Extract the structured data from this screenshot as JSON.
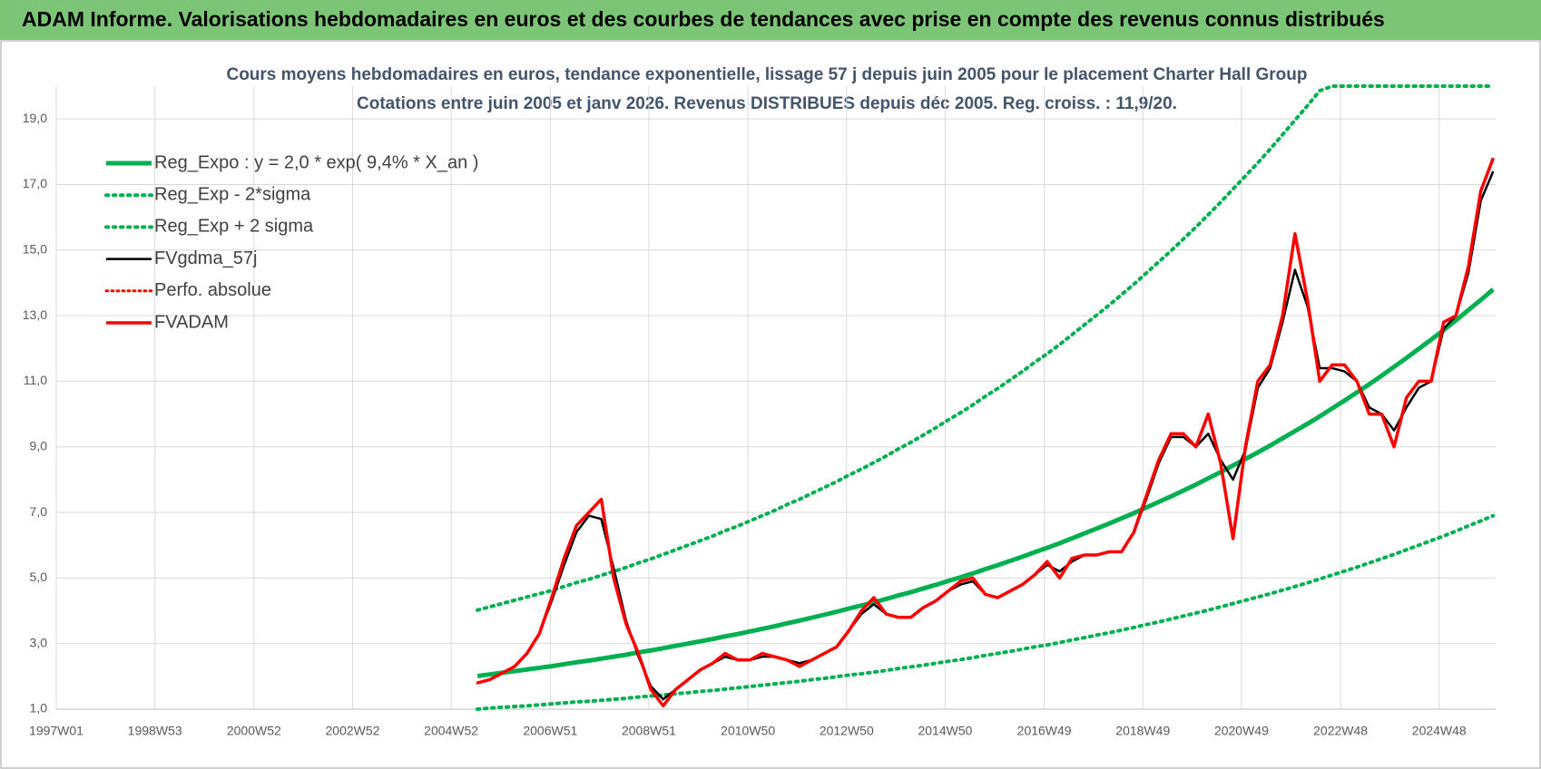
{
  "chart_data": {
    "type": "line",
    "title": "ADAM Informe. Valorisations hebdomadaires en euros et des courbes de tendances avec prise en compte des revenus connus distribués",
    "subtitle": [
      "Cours moyens hebdomadaires en euros, tendance exponentielle, lissage 57 j depuis juin 2005 pour le placement Charter Hall Group",
      "Cotations entre juin 2005 et janv 2026. Revenus DISTRIBUES depuis déc 2005. Reg. croiss. : 11,9/20."
    ],
    "legend": "upper left",
    "grid": true,
    "xlim": [
      1997,
      2026.05
    ],
    "xticks": [
      {
        "value": 1997.0,
        "label": "1997W01"
      },
      {
        "value": 1998.99,
        "label": "1998W53"
      },
      {
        "value": 2000.99,
        "label": "2000W52"
      },
      {
        "value": 2002.98,
        "label": "2002W52"
      },
      {
        "value": 2004.97,
        "label": "2004W52"
      },
      {
        "value": 2006.97,
        "label": "2006W51"
      },
      {
        "value": 2008.96,
        "label": "2008W51"
      },
      {
        "value": 2010.96,
        "label": "2010W50"
      },
      {
        "value": 2012.95,
        "label": "2012W50"
      },
      {
        "value": 2014.94,
        "label": "2014W50"
      },
      {
        "value": 2016.94,
        "label": "2016W49"
      },
      {
        "value": 2018.93,
        "label": "2018W49"
      },
      {
        "value": 2020.92,
        "label": "2020W49"
      },
      {
        "value": 2022.92,
        "label": "2022W48"
      },
      {
        "value": 2024.91,
        "label": "2024W48"
      }
    ],
    "ylim": [
      1,
      20
    ],
    "yticks": [
      {
        "value": 1,
        "label": "1,0"
      },
      {
        "value": 3,
        "label": "3,0"
      },
      {
        "value": 5,
        "label": "5,0"
      },
      {
        "value": 7,
        "label": "7,0"
      },
      {
        "value": 9,
        "label": "9,0"
      },
      {
        "value": 11,
        "label": "11,0"
      },
      {
        "value": 13,
        "label": "13,0"
      },
      {
        "value": 15,
        "label": "15,0"
      },
      {
        "value": 17,
        "label": "17,0"
      },
      {
        "value": 19,
        "label": "19,0"
      }
    ],
    "x": [
      2005.5,
      2005.75,
      2006,
      2006.25,
      2006.5,
      2006.75,
      2007,
      2007.25,
      2007.5,
      2007.75,
      2008,
      2008.25,
      2008.5,
      2008.75,
      2009,
      2009.25,
      2009.5,
      2009.75,
      2010,
      2010.25,
      2010.5,
      2010.75,
      2011,
      2011.25,
      2011.5,
      2011.75,
      2012,
      2012.25,
      2012.5,
      2012.75,
      2013,
      2013.25,
      2013.5,
      2013.75,
      2014,
      2014.25,
      2014.5,
      2014.75,
      2015,
      2015.25,
      2015.5,
      2015.75,
      2016,
      2016.25,
      2016.5,
      2016.75,
      2017,
      2017.25,
      2017.5,
      2017.75,
      2018,
      2018.25,
      2018.5,
      2018.75,
      2019,
      2019.25,
      2019.5,
      2019.75,
      2020,
      2020.25,
      2020.5,
      2020.75,
      2021,
      2021.25,
      2021.5,
      2021.75,
      2022,
      2022.25,
      2022.5,
      2022.75,
      2023,
      2023.25,
      2023.5,
      2023.75,
      2024,
      2024.25,
      2024.5,
      2024.75,
      2025,
      2025.25,
      2025.5,
      2025.75,
      2026
    ],
    "series": [
      {
        "name": "Reg_Expo : y = 2,0 * exp( 9,4% *  X_an )",
        "color": "#00b050",
        "style": "solid",
        "width": 5,
        "values": [
          2.01,
          2.06,
          2.11,
          2.16,
          2.21,
          2.26,
          2.31,
          2.37,
          2.43,
          2.48,
          2.54,
          2.6,
          2.66,
          2.73,
          2.79,
          2.86,
          2.93,
          3.0,
          3.07,
          3.14,
          3.22,
          3.29,
          3.37,
          3.45,
          3.53,
          3.62,
          3.7,
          3.79,
          3.88,
          3.97,
          4.07,
          4.16,
          4.26,
          4.36,
          4.47,
          4.57,
          4.68,
          4.79,
          4.91,
          5.02,
          5.14,
          5.27,
          5.39,
          5.52,
          5.65,
          5.79,
          5.92,
          6.06,
          6.21,
          6.36,
          6.51,
          6.66,
          6.82,
          6.98,
          7.15,
          7.32,
          7.49,
          7.67,
          7.85,
          8.04,
          8.23,
          8.43,
          8.63,
          8.83,
          9.04,
          9.26,
          9.48,
          9.7,
          9.93,
          10.17,
          10.41,
          10.66,
          10.91,
          11.17,
          11.44,
          11.71,
          11.99,
          12.27,
          12.56,
          12.86,
          13.17,
          13.48,
          13.8
        ]
      },
      {
        "name": "Reg_Exp - 2*sigma",
        "color": "#00b050",
        "style": "dotted",
        "width": 4,
        "values": [
          1.0,
          1.03,
          1.06,
          1.08,
          1.1,
          1.13,
          1.16,
          1.19,
          1.22,
          1.24,
          1.27,
          1.3,
          1.33,
          1.37,
          1.4,
          1.43,
          1.47,
          1.5,
          1.54,
          1.57,
          1.61,
          1.65,
          1.69,
          1.73,
          1.77,
          1.81,
          1.85,
          1.9,
          1.94,
          1.99,
          2.04,
          2.08,
          2.13,
          2.18,
          2.24,
          2.29,
          2.34,
          2.4,
          2.46,
          2.51,
          2.57,
          2.64,
          2.7,
          2.76,
          2.83,
          2.9,
          2.96,
          3.03,
          3.11,
          3.18,
          3.26,
          3.33,
          3.41,
          3.49,
          3.58,
          3.66,
          3.75,
          3.84,
          3.93,
          4.02,
          4.12,
          4.22,
          4.32,
          4.42,
          4.52,
          4.63,
          4.74,
          4.85,
          4.97,
          5.09,
          5.21,
          5.33,
          5.46,
          5.59,
          5.72,
          5.86,
          6.0,
          6.14,
          6.28,
          6.43,
          6.59,
          6.74,
          6.9
        ]
      },
      {
        "name": "Reg_Exp + 2 sigma",
        "color": "#00b050",
        "style": "dotted",
        "width": 4,
        "values": [
          4.02,
          4.12,
          4.22,
          4.32,
          4.42,
          4.52,
          4.62,
          4.74,
          4.86,
          4.96,
          5.08,
          5.2,
          5.32,
          5.46,
          5.58,
          5.72,
          5.86,
          6.0,
          6.14,
          6.28,
          6.44,
          6.58,
          6.74,
          6.9,
          7.06,
          7.24,
          7.4,
          7.58,
          7.76,
          7.94,
          8.14,
          8.32,
          8.52,
          8.72,
          8.94,
          9.14,
          9.36,
          9.58,
          9.82,
          10.04,
          10.28,
          10.54,
          10.78,
          11.04,
          11.3,
          11.58,
          11.84,
          12.12,
          12.42,
          12.72,
          13.02,
          13.32,
          13.64,
          13.96,
          14.3,
          14.64,
          14.98,
          15.34,
          15.7,
          16.08,
          16.46,
          16.86,
          17.26,
          17.66,
          18.08,
          18.52,
          18.96,
          19.4,
          19.86,
          20,
          20,
          20,
          20,
          20,
          20,
          20,
          20,
          20,
          20,
          20,
          20,
          20,
          20
        ]
      },
      {
        "name": "FVgdma_57j",
        "color": "#000000",
        "style": "solid",
        "width": 2.5,
        "values": [
          1.8,
          1.9,
          2.1,
          2.3,
          2.7,
          3.3,
          4.3,
          5.4,
          6.4,
          6.9,
          6.8,
          5.3,
          3.7,
          2.6,
          1.7,
          1.3,
          1.6,
          1.9,
          2.2,
          2.4,
          2.6,
          2.5,
          2.5,
          2.6,
          2.6,
          2.5,
          2.4,
          2.5,
          2.7,
          2.9,
          3.4,
          3.9,
          4.2,
          3.9,
          3.8,
          3.8,
          4.1,
          4.3,
          4.6,
          4.8,
          4.9,
          4.5,
          4.4,
          4.6,
          4.8,
          5.1,
          5.4,
          5.2,
          5.5,
          5.7,
          5.7,
          5.8,
          5.8,
          6.4,
          7.4,
          8.5,
          9.3,
          9.3,
          9.0,
          9.4,
          8.6,
          8.0,
          8.9,
          10.8,
          11.4,
          12.8,
          14.4,
          13.3,
          11.4,
          11.4,
          11.3,
          11.0,
          10.2,
          10.0,
          9.5,
          10.2,
          10.8,
          11.0,
          12.6,
          13.0,
          14.3,
          16.5,
          17.4
        ]
      },
      {
        "name": "Perfo. absolue",
        "color": "#ff0000",
        "style": "dotted",
        "width": 3,
        "values": [
          1.8,
          1.9,
          2.1,
          2.3,
          2.7,
          3.3,
          4.4,
          5.6,
          6.6,
          7.0,
          7.4,
          5.0,
          3.6,
          2.7,
          1.6,
          1.1,
          1.6,
          1.9,
          2.2,
          2.4,
          2.7,
          2.5,
          2.5,
          2.7,
          2.6,
          2.5,
          2.3,
          2.5,
          2.7,
          2.9,
          3.4,
          4.0,
          4.4,
          3.9,
          3.8,
          3.8,
          4.1,
          4.3,
          4.6,
          4.9,
          5.0,
          4.5,
          4.4,
          4.6,
          4.8,
          5.1,
          5.5,
          5.0,
          5.6,
          5.7,
          5.7,
          5.8,
          5.8,
          6.4,
          7.5,
          8.6,
          9.4,
          9.4,
          9.0,
          10.0,
          8.5,
          6.2,
          9.0,
          11.0,
          11.5,
          13.0,
          15.5,
          13.5,
          11.0,
          11.5,
          11.5,
          11.0,
          10.0,
          10.0,
          9.0,
          10.5,
          11.0,
          11.0,
          12.8,
          13.0,
          14.5,
          16.8,
          17.8
        ]
      },
      {
        "name": "FVADAM",
        "color": "#ff0000",
        "style": "solid",
        "width": 3.5,
        "values": [
          1.8,
          1.9,
          2.1,
          2.3,
          2.7,
          3.3,
          4.4,
          5.6,
          6.6,
          7.0,
          7.4,
          5.0,
          3.6,
          2.7,
          1.6,
          1.1,
          1.6,
          1.9,
          2.2,
          2.4,
          2.7,
          2.5,
          2.5,
          2.7,
          2.6,
          2.5,
          2.3,
          2.5,
          2.7,
          2.9,
          3.4,
          4.0,
          4.4,
          3.9,
          3.8,
          3.8,
          4.1,
          4.3,
          4.6,
          4.9,
          5.0,
          4.5,
          4.4,
          4.6,
          4.8,
          5.1,
          5.5,
          5.0,
          5.6,
          5.7,
          5.7,
          5.8,
          5.8,
          6.4,
          7.5,
          8.6,
          9.4,
          9.4,
          9.0,
          10.0,
          8.5,
          6.2,
          9.0,
          11.0,
          11.5,
          13.0,
          15.5,
          13.5,
          11.0,
          11.5,
          11.5,
          11.0,
          10.0,
          10.0,
          9.0,
          10.5,
          11.0,
          11.0,
          12.8,
          13.0,
          14.5,
          16.8,
          17.8
        ]
      }
    ]
  }
}
